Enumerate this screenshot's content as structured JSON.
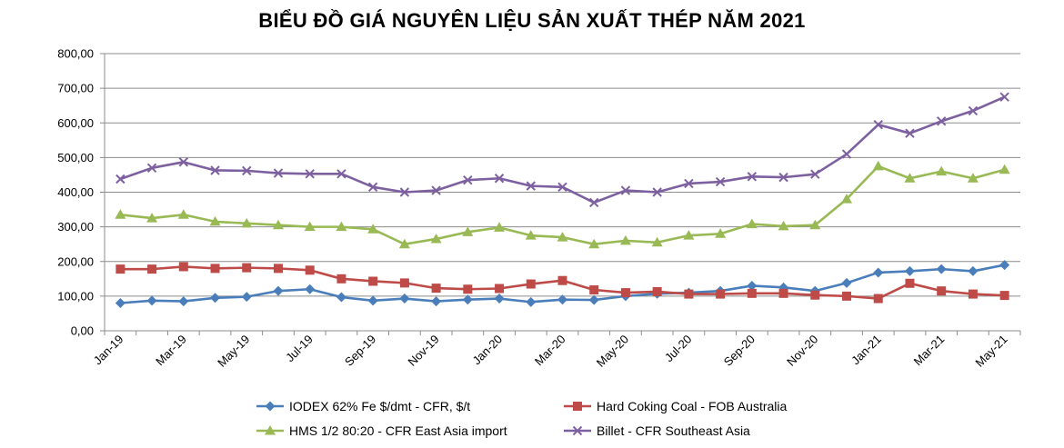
{
  "chart_data": {
    "type": "line",
    "title": "BIỂU ĐỒ GIÁ NGUYÊN LIỆU SẢN XUẤT THÉP NĂM 2021",
    "xlabel": "",
    "ylabel": "",
    "ylim": [
      0,
      800
    ],
    "y_ticks": [
      "0,00",
      "100,00",
      "200,00",
      "300,00",
      "400,00",
      "500,00",
      "600,00",
      "700,00",
      "800,00"
    ],
    "x": [
      "Jan-19",
      "Feb-19",
      "Mar-19",
      "Apr-19",
      "May-19",
      "Jun-19",
      "Jul-19",
      "Aug-19",
      "Sep-19",
      "Oct-19",
      "Nov-19",
      "Dec-19",
      "Jan-20",
      "Feb-20",
      "Mar-20",
      "Apr-20",
      "May-20",
      "Jun-20",
      "Jul-20",
      "Aug-20",
      "Sep-20",
      "Oct-20",
      "Nov-20",
      "Dec-20",
      "Jan-21",
      "Feb-21",
      "Mar-21",
      "Apr-21",
      "May-21"
    ],
    "x_tick_labels": [
      "Jan-19",
      "Mar-19",
      "May-19",
      "Jul-19",
      "Sep-19",
      "Nov-19",
      "Jan-20",
      "Mar-20",
      "May-20",
      "Jul-20",
      "Sep-20",
      "Nov-20",
      "Jan-21",
      "Mar-21",
      "May-21"
    ],
    "grid": "horizontal",
    "legend_position": "bottom",
    "series": [
      {
        "name": "IODEX 62% Fe $/dmt - CFR, $/t",
        "color": "#4a7ebb",
        "marker": "diamond",
        "values": [
          80,
          87,
          85,
          95,
          98,
          115,
          120,
          97,
          87,
          93,
          85,
          90,
          93,
          83,
          90,
          89,
          100,
          107,
          110,
          115,
          130,
          125,
          115,
          138,
          168,
          172,
          178,
          172,
          190
        ]
      },
      {
        "name": "Hard Coking Coal - FOB Australia",
        "color": "#be4b48",
        "marker": "square",
        "values": [
          178,
          178,
          185,
          180,
          182,
          180,
          175,
          150,
          143,
          138,
          123,
          120,
          122,
          135,
          145,
          118,
          110,
          113,
          106,
          106,
          108,
          108,
          103,
          100,
          93,
          137,
          115,
          106,
          102
        ]
      },
      {
        "name": "HMS 1/2 80:20 - CFR East Asia import",
        "color": "#98b954",
        "marker": "triangle",
        "values": [
          335,
          325,
          335,
          315,
          310,
          305,
          300,
          300,
          293,
          250,
          265,
          285,
          298,
          275,
          270,
          250,
          260,
          255,
          275,
          280,
          308,
          302,
          305,
          380,
          475,
          440,
          460,
          440,
          465
        ]
      },
      {
        "name": "Billet - CFR Southeast Asia",
        "color": "#7d60a0",
        "marker": "x",
        "values": [
          438,
          470,
          487,
          463,
          462,
          455,
          453,
          453,
          415,
          400,
          405,
          435,
          440,
          418,
          415,
          370,
          405,
          400,
          425,
          430,
          445,
          443,
          452,
          510,
          595,
          570,
          605,
          635,
          675
        ]
      }
    ]
  }
}
